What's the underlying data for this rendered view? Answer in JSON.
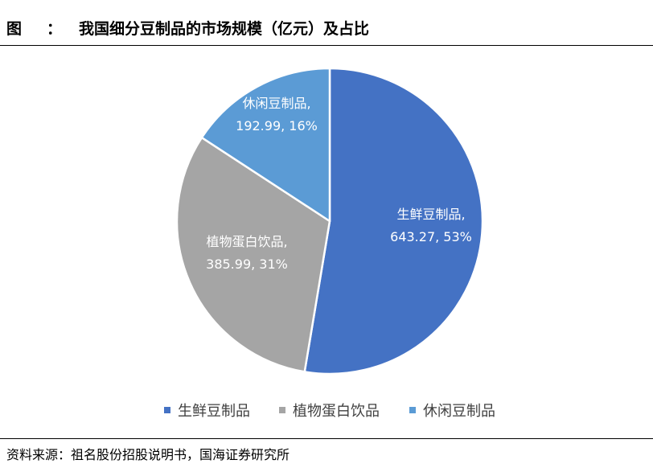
{
  "figure": {
    "label": "图",
    "colon": "：",
    "title": "我国细分豆制品的市场规模（亿元）及占比"
  },
  "source": "资料来源：祖名股份招股说明书，国海证券研究所",
  "chart_data": {
    "type": "pie",
    "title": "我国细分豆制品的市场规模（亿元）及占比",
    "unit": "亿元",
    "legend_position": "bottom",
    "slices": [
      {
        "name": "生鲜豆制品",
        "value": 643.27,
        "percent": "53%",
        "color": "#4472C4"
      },
      {
        "name": "植物蛋白饮品",
        "value": 385.99,
        "percent": "31%",
        "color": "#A5A5A5"
      },
      {
        "name": "休闲豆制品",
        "value": 192.99,
        "percent": "16%",
        "color": "#5B9BD5"
      }
    ]
  }
}
